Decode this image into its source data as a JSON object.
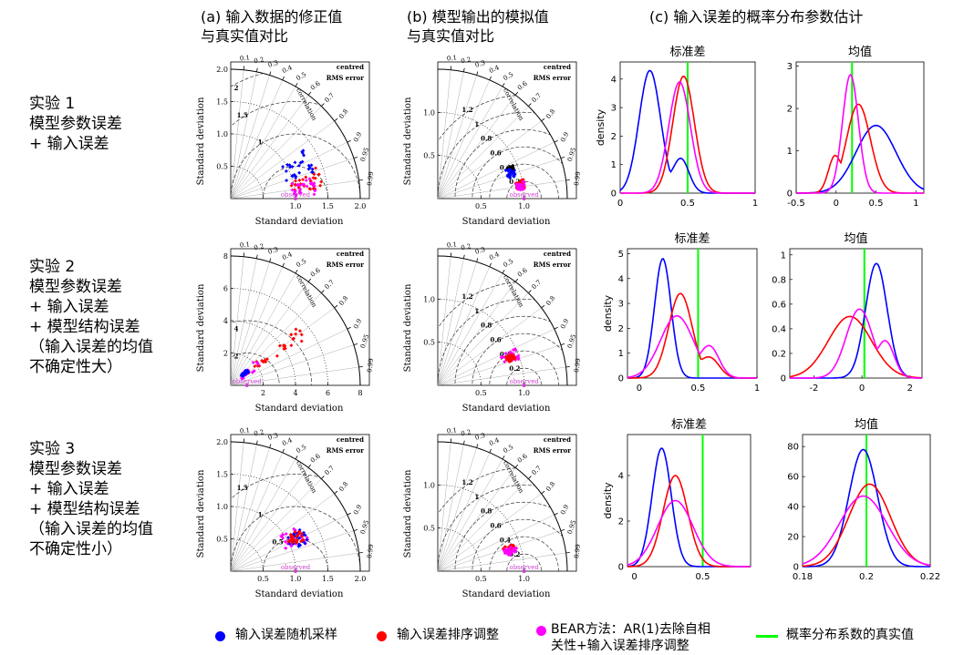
{
  "headers": {
    "col_a": "(a) 输入数据的修正值\n与真实值对比",
    "col_b": "(b) 模型输出的模拟值\n与真实值对比",
    "col_c": "(c) 输入误差的概率分布参数估计"
  },
  "rows": [
    {
      "label": "实验 1\n模型参数误差\n+ 输入误差"
    },
    {
      "label": "实验 2\n模型参数误差\n+ 输入误差\n+ 模型结构误差\n（输入误差的均值\n不确定性大）"
    },
    {
      "label": "实验 3\n模型参数误差\n+ 输入误差\n+ 模型结构误差\n（输入误差的均值\n不确定性小）"
    }
  ],
  "taylor_text": {
    "centred": "centred",
    "rms": "RMS error",
    "axis": "Standard deviation",
    "correlation": "correlation",
    "observed": "observed"
  },
  "colors": {
    "blue": "#0000ff",
    "red": "#ff0000",
    "magenta": "#ff00ff",
    "green": "#00ff00",
    "obs": "#cc44cc"
  },
  "legend": {
    "random": "输入误差随机采样",
    "reorder": "输入误差排序调整",
    "bear": "BEAR方法：AR(1)去除自相\n关性+输入误差排序调整",
    "true": "概率分布系数的真实值"
  },
  "chart_data": [
    {
      "type": "scatter",
      "panel": "taylor-input-1",
      "max": 2.0,
      "ticks": [
        0.5,
        1.0,
        1.5,
        2.0
      ],
      "tick_labels": [
        "",
        "1.0",
        "1.5",
        "2.0"
      ],
      "ytick_labels": [
        "0.5",
        "1.0",
        "1.5",
        "2.0"
      ],
      "rms": [
        0.5,
        1,
        1.5,
        2
      ],
      "rms_labels": [
        "",
        "1",
        "1.5",
        "2"
      ],
      "clusters": [
        {
          "c": "blue",
          "r": [
            0.9,
            1.35
          ],
          "th": [
            0.3,
            0.6
          ]
        },
        {
          "c": "red",
          "r": [
            0.95,
            1.45
          ],
          "th": [
            0.1,
            0.35
          ]
        },
        {
          "c": "magenta",
          "r": [
            0.95,
            1.35
          ],
          "th": [
            0.05,
            0.25
          ]
        }
      ]
    },
    {
      "type": "scatter",
      "panel": "taylor-output-1",
      "max": 1.5,
      "ticks": [
        0.5,
        1.0
      ],
      "tick_labels": [
        "0.5",
        "1.0"
      ],
      "ytick_labels": [
        "0.5",
        "1.0"
      ],
      "rms": [
        0.2,
        0.4,
        0.6,
        0.8,
        1.0,
        1.2
      ],
      "rms_labels": [
        "0.2",
        "0.4",
        "0.6",
        "0.8",
        "1",
        "1.2"
      ],
      "clusters": [
        {
          "c": "black",
          "r": [
            0.88,
            0.95
          ],
          "th": [
            0.35,
            0.42
          ]
        },
        {
          "c": "blue",
          "r": [
            0.85,
            0.95
          ],
          "th": [
            0.28,
            0.4
          ]
        },
        {
          "c": "red",
          "r": [
            0.92,
            1.02
          ],
          "th": [
            0.12,
            0.22
          ]
        },
        {
          "c": "magenta",
          "r": [
            0.92,
            1.02
          ],
          "th": [
            0.1,
            0.2
          ]
        }
      ]
    },
    {
      "type": "scatter",
      "panel": "taylor-input-2",
      "max": 8,
      "ticks": [
        2,
        4,
        6,
        8
      ],
      "tick_labels": [
        "2",
        "4",
        "6",
        "8"
      ],
      "ytick_labels": [
        "2",
        "4",
        "6",
        "8"
      ],
      "rms": [
        2,
        4
      ],
      "rms_labels": [
        "2",
        "4"
      ],
      "clusters": [
        {
          "c": "red",
          "r": [
            1.0,
            5.5
          ],
          "th": [
            0.55,
            0.75
          ]
        },
        {
          "c": "magenta",
          "r": [
            0.8,
            2.2
          ],
          "th": [
            0.5,
            0.8
          ]
        },
        {
          "c": "blue",
          "r": [
            0.9,
            1.4
          ],
          "th": [
            0.6,
            0.8
          ]
        }
      ]
    },
    {
      "type": "scatter",
      "panel": "taylor-output-2",
      "max": 1.5,
      "ticks": [
        0.5,
        1.0
      ],
      "tick_labels": [
        "0.5",
        "1.0"
      ],
      "ytick_labels": [
        "0.5",
        "1.0"
      ],
      "rms": [
        0.2,
        0.4,
        0.6,
        0.8,
        1.0,
        1.2
      ],
      "rms_labels": [
        "0.2",
        "0.4",
        "0.6",
        "0.8",
        "1",
        "1.2"
      ],
      "clusters": [
        {
          "c": "magenta",
          "r": [
            0.8,
            1.0
          ],
          "th": [
            0.3,
            0.45
          ]
        },
        {
          "c": "red",
          "r": [
            0.85,
            0.95
          ],
          "th": [
            0.32,
            0.4
          ]
        }
      ]
    },
    {
      "type": "scatter",
      "panel": "taylor-input-3",
      "max": 2.0,
      "ticks": [
        0.5,
        1.0,
        1.5,
        2.0
      ],
      "tick_labels": [
        "0.5",
        "1.0",
        "1.5",
        "2.0"
      ],
      "ytick_labels": [
        "0.5",
        "1.0",
        "1.5",
        "2.0"
      ],
      "rms": [
        0.5,
        1,
        1.5
      ],
      "rms_labels": [
        "0.5",
        "1",
        "1.5"
      ],
      "clusters": [
        {
          "c": "magenta",
          "r": [
            0.9,
            1.3
          ],
          "th": [
            0.35,
            0.65
          ]
        },
        {
          "c": "blue",
          "r": [
            1.0,
            1.3
          ],
          "th": [
            0.35,
            0.55
          ]
        },
        {
          "c": "red",
          "r": [
            1.0,
            1.25
          ],
          "th": [
            0.4,
            0.55
          ]
        }
      ]
    },
    {
      "type": "scatter",
      "panel": "taylor-output-3",
      "max": 1.5,
      "ticks": [
        0.5,
        1.0
      ],
      "tick_labels": [
        "0.5",
        "1.0"
      ],
      "ytick_labels": [
        "0.5",
        "1.0"
      ],
      "rms": [
        0.2,
        0.4,
        0.6,
        0.8,
        1.0,
        1.2
      ],
      "rms_labels": [
        "0.2",
        "0.4",
        "0.6",
        "0.8",
        "1",
        "1.2"
      ],
      "clusters": [
        {
          "c": "red",
          "r": [
            0.8,
            0.95
          ],
          "th": [
            0.25,
            0.35
          ]
        },
        {
          "c": "magenta",
          "r": [
            0.8,
            0.95
          ],
          "th": [
            0.22,
            0.32
          ]
        }
      ]
    },
    {
      "type": "line",
      "panel": "density-std-1",
      "title": "标准差",
      "ylabel": "density",
      "xlim": [
        0,
        1
      ],
      "ylim": [
        0,
        4.6
      ],
      "xticks": [
        0,
        0.5,
        1
      ],
      "xtick_labels": [
        "0",
        "0.5",
        "1"
      ],
      "yticks": [
        0,
        1,
        2,
        3,
        4
      ],
      "truth": 0.5,
      "series": [
        {
          "c": "blue",
          "mu": 0.22,
          "sd": 0.08,
          "h": 4.3,
          "extra": [
            [
              0.45,
              0.06,
              1.2
            ]
          ]
        },
        {
          "c": "red",
          "mu": 0.47,
          "sd": 0.08,
          "h": 4.1
        },
        {
          "c": "magenta",
          "mu": 0.44,
          "sd": 0.08,
          "h": 3.9
        }
      ]
    },
    {
      "type": "line",
      "panel": "density-mean-1",
      "title": "均值",
      "ylabel": "",
      "xlim": [
        -0.5,
        1.1
      ],
      "ylim": [
        0,
        3.1
      ],
      "xticks": [
        -0.5,
        0,
        0.5,
        1
      ],
      "xtick_labels": [
        "-0.5",
        "0",
        "0.5",
        "1"
      ],
      "yticks": [
        0,
        1,
        2,
        3
      ],
      "truth": 0.2,
      "series": [
        {
          "c": "blue",
          "mu": 0.5,
          "sd": 0.25,
          "h": 1.6
        },
        {
          "c": "red",
          "mu": 0.28,
          "sd": 0.15,
          "h": 2.1,
          "extra": [
            [
              -0.02,
              0.08,
              0.8
            ]
          ]
        },
        {
          "c": "magenta",
          "mu": 0.18,
          "sd": 0.1,
          "h": 2.8
        }
      ]
    },
    {
      "type": "line",
      "panel": "density-std-2",
      "title": "标准差",
      "ylabel": "density",
      "xlim": [
        -0.1,
        1.0
      ],
      "ylim": [
        0,
        5.2
      ],
      "xticks": [
        0,
        0.5,
        1
      ],
      "xtick_labels": [
        "0",
        "0.5",
        "1"
      ],
      "yticks": [
        0,
        1,
        2,
        3,
        4,
        5
      ],
      "truth": 0.5,
      "series": [
        {
          "c": "blue",
          "mu": 0.2,
          "sd": 0.07,
          "h": 4.8
        },
        {
          "c": "red",
          "mu": 0.35,
          "sd": 0.1,
          "h": 3.4,
          "extra": [
            [
              0.6,
              0.08,
              0.8
            ]
          ]
        },
        {
          "c": "magenta",
          "mu": 0.32,
          "sd": 0.14,
          "h": 2.5,
          "extra": [
            [
              0.6,
              0.08,
              1.2
            ]
          ]
        }
      ]
    },
    {
      "type": "line",
      "panel": "density-mean-2",
      "title": "均值",
      "ylabel": "",
      "xlim": [
        -3,
        2.5
      ],
      "ylim": [
        0,
        1.05
      ],
      "xticks": [
        -2,
        0,
        2
      ],
      "xtick_labels": [
        "-2",
        "0",
        "2"
      ],
      "yticks": [
        0,
        0.2,
        0.4,
        0.6,
        0.8,
        1
      ],
      "truth": 0.1,
      "series": [
        {
          "c": "blue",
          "mu": 0.6,
          "sd": 0.45,
          "h": 0.93
        },
        {
          "c": "red",
          "mu": -0.5,
          "sd": 0.9,
          "h": 0.5
        },
        {
          "c": "magenta",
          "mu": -0.1,
          "sd": 0.55,
          "h": 0.56,
          "extra": [
            [
              1.0,
              0.35,
              0.28
            ]
          ]
        }
      ]
    },
    {
      "type": "line",
      "panel": "density-std-3",
      "title": "标准差",
      "ylabel": "density",
      "xlim": [
        -0.05,
        0.85
      ],
      "ylim": [
        0,
        5.8
      ],
      "xticks": [
        0,
        0.5
      ],
      "xtick_labels": [
        "0",
        "0.5"
      ],
      "yticks": [
        0,
        2,
        4
      ],
      "truth": 0.5,
      "series": [
        {
          "c": "blue",
          "mu": 0.2,
          "sd": 0.07,
          "h": 5.2
        },
        {
          "c": "red",
          "mu": 0.3,
          "sd": 0.09,
          "h": 4.0
        },
        {
          "c": "magenta",
          "mu": 0.3,
          "sd": 0.13,
          "h": 2.9
        }
      ]
    },
    {
      "type": "line",
      "panel": "density-mean-3",
      "title": "均值",
      "ylabel": "",
      "xlim": [
        0.18,
        0.22
      ],
      "ylim": [
        0,
        88
      ],
      "xticks": [
        0.18,
        0.2,
        0.22
      ],
      "xtick_labels": [
        "0.18",
        "0.2",
        "0.22"
      ],
      "yticks": [
        0,
        20,
        40,
        60,
        80
      ],
      "truth": 0.2,
      "series": [
        {
          "c": "blue",
          "mu": 0.199,
          "sd": 0.0045,
          "h": 78
        },
        {
          "c": "red",
          "mu": 0.201,
          "sd": 0.0065,
          "h": 55
        },
        {
          "c": "magenta",
          "mu": 0.199,
          "sd": 0.0075,
          "h": 47
        }
      ]
    }
  ]
}
